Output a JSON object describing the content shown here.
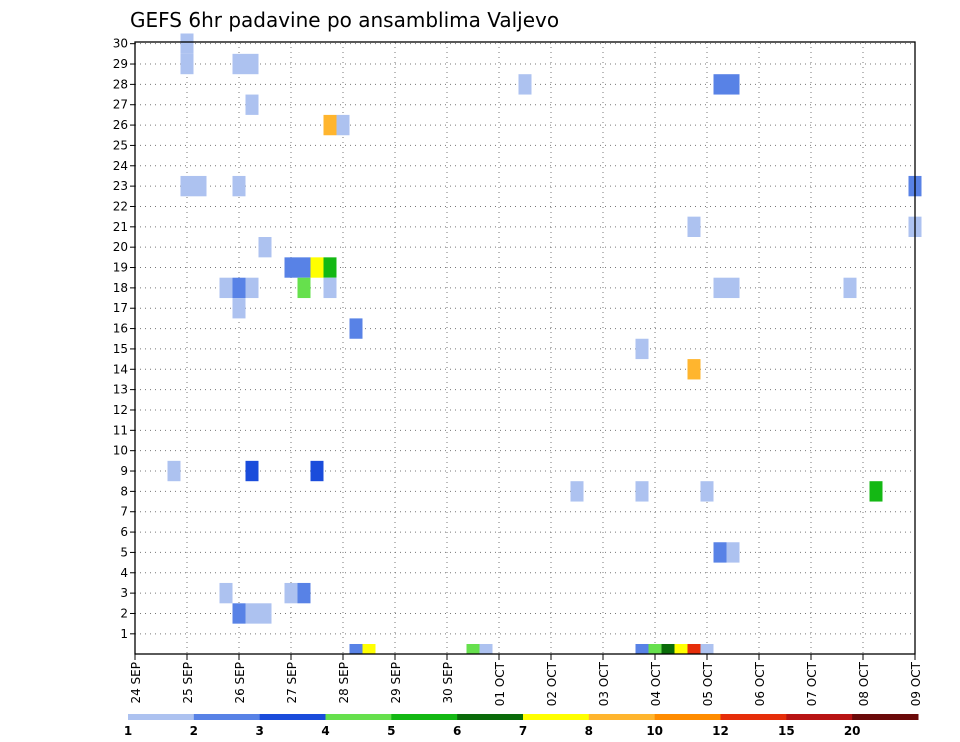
{
  "chart_data": {
    "type": "heatmap",
    "title": "GEFS 6hr padavine po ansamblima Valjevo",
    "xlabel": "",
    "ylabel": "",
    "x_ticks": [
      "24 SEP",
      "25 SEP",
      "26 SEP",
      "27 SEP",
      "28 SEP",
      "29 SEP",
      "30 SEP",
      "01 OCT",
      "02 OCT",
      "03 OCT",
      "04 OCT",
      "05 OCT",
      "06 OCT",
      "07 OCT",
      "08 OCT",
      "09 OCT"
    ],
    "y_ticks": [
      "1",
      "2",
      "3",
      "4",
      "5",
      "6",
      "7",
      "8",
      "9",
      "10",
      "11",
      "12",
      "13",
      "14",
      "15",
      "16",
      "17",
      "18",
      "19",
      "20",
      "21",
      "22",
      "23",
      "24",
      "25",
      "26",
      "27",
      "28",
      "29",
      "30"
    ],
    "x_range_days": [
      0,
      15
    ],
    "y_range": [
      0,
      30
    ],
    "grid": true,
    "legend_placement": "bottom",
    "legend": {
      "labels": [
        "1",
        "2",
        "3",
        "4",
        "5",
        "6",
        "7",
        "8",
        "10",
        "12",
        "15",
        "20"
      ],
      "colors": [
        "#adc2f0",
        "#5882e6",
        "#1a4cdb",
        "#66e04d",
        "#14b814",
        "#0a6b0a",
        "#ffff00",
        "#ffb52e",
        "#ff8c00",
        "#e62e0a",
        "#b81414",
        "#6b0a0a"
      ]
    },
    "cells": [
      {
        "t": 4,
        "m": 29,
        "lvl": 1
      },
      {
        "t": 4,
        "m": 30,
        "lvl": 1
      },
      {
        "t": 8,
        "m": 29,
        "lvl": 1
      },
      {
        "t": 9,
        "m": 29,
        "lvl": 1
      },
      {
        "t": 9,
        "m": 27,
        "lvl": 1
      },
      {
        "t": 15,
        "m": 26,
        "lvl": 8
      },
      {
        "t": 16,
        "m": 26,
        "lvl": 1
      },
      {
        "t": 4,
        "m": 23,
        "lvl": 1
      },
      {
        "t": 5,
        "m": 23,
        "lvl": 1
      },
      {
        "t": 8,
        "m": 23,
        "lvl": 1
      },
      {
        "t": 10,
        "m": 20,
        "lvl": 1
      },
      {
        "t": 12,
        "m": 19,
        "lvl": 2
      },
      {
        "t": 13,
        "m": 19,
        "lvl": 2
      },
      {
        "t": 14,
        "m": 19,
        "lvl": 7
      },
      {
        "t": 15,
        "m": 19,
        "lvl": 5
      },
      {
        "t": 7,
        "m": 18,
        "lvl": 1
      },
      {
        "t": 8,
        "m": 18,
        "lvl": 2
      },
      {
        "t": 9,
        "m": 18,
        "lvl": 1
      },
      {
        "t": 13,
        "m": 18,
        "lvl": 4
      },
      {
        "t": 15,
        "m": 18,
        "lvl": 1
      },
      {
        "t": 8,
        "m": 17,
        "lvl": 1
      },
      {
        "t": 17,
        "m": 16,
        "lvl": 2
      },
      {
        "t": 3,
        "m": 9,
        "lvl": 1
      },
      {
        "t": 9,
        "m": 9,
        "lvl": 3
      },
      {
        "t": 14,
        "m": 9,
        "lvl": 3
      },
      {
        "t": 7,
        "m": 3,
        "lvl": 1
      },
      {
        "t": 12,
        "m": 3,
        "lvl": 1
      },
      {
        "t": 13,
        "m": 3,
        "lvl": 2
      },
      {
        "t": 8,
        "m": 2,
        "lvl": 2
      },
      {
        "t": 9,
        "m": 2,
        "lvl": 1
      },
      {
        "t": 10,
        "m": 2,
        "lvl": 1
      },
      {
        "t": 30,
        "m": 28,
        "lvl": 1
      },
      {
        "t": 34,
        "m": 8,
        "lvl": 1
      },
      {
        "t": 39,
        "m": 15,
        "lvl": 1
      },
      {
        "t": 39,
        "m": 8,
        "lvl": 1
      },
      {
        "t": 43,
        "m": 21,
        "lvl": 1
      },
      {
        "t": 43,
        "m": 14,
        "lvl": 8
      },
      {
        "t": 44,
        "m": 8,
        "lvl": 1
      },
      {
        "t": 45,
        "m": 28,
        "lvl": 2
      },
      {
        "t": 46,
        "m": 28,
        "lvl": 2
      },
      {
        "t": 45,
        "m": 18,
        "lvl": 1
      },
      {
        "t": 46,
        "m": 18,
        "lvl": 1
      },
      {
        "t": 45,
        "m": 5,
        "lvl": 2
      },
      {
        "t": 46,
        "m": 5,
        "lvl": 1
      },
      {
        "t": 55,
        "m": 18,
        "lvl": 1
      },
      {
        "t": 57,
        "m": 8,
        "lvl": 5
      },
      {
        "t": 60,
        "m": 23,
        "lvl": 2
      },
      {
        "t": 60,
        "m": 21,
        "lvl": 1
      }
    ],
    "summary_row": [
      {
        "t": 17,
        "lvl": 2
      },
      {
        "t": 18,
        "lvl": 7
      },
      {
        "t": 26,
        "lvl": 4
      },
      {
        "t": 27,
        "lvl": 1
      },
      {
        "t": 39,
        "lvl": 2
      },
      {
        "t": 40,
        "lvl": 4
      },
      {
        "t": 41,
        "lvl": 6
      },
      {
        "t": 42,
        "lvl": 7
      },
      {
        "t": 43,
        "lvl": 10
      },
      {
        "t": 44,
        "lvl": 1
      }
    ]
  }
}
